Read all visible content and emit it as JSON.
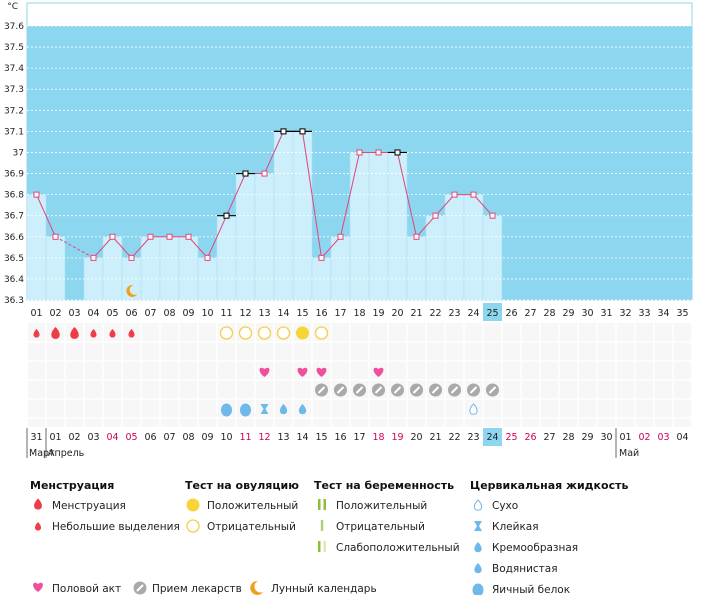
{
  "chart_data": {
    "type": "line",
    "unit": "°C",
    "ylim": [
      36.3,
      37.6
    ],
    "y_ticks": [
      "36.3",
      "36.4",
      "36.5",
      "36.6",
      "36.7",
      "36.8",
      "36.9",
      "37",
      "37.1",
      "37.2",
      "37.3",
      "37.4",
      "37.5",
      "37.6"
    ],
    "cycle_days": [
      "01",
      "02",
      "03",
      "04",
      "05",
      "06",
      "07",
      "08",
      "09",
      "10",
      "11",
      "12",
      "13",
      "14",
      "15",
      "16",
      "17",
      "18",
      "19",
      "20",
      "21",
      "22",
      "23",
      "24",
      "25",
      "26",
      "27",
      "28",
      "29",
      "30",
      "31",
      "32",
      "33",
      "34",
      "35"
    ],
    "today_cycle_day": "25",
    "temperatures": [
      36.8,
      36.6,
      null,
      36.5,
      36.6,
      36.5,
      36.6,
      36.6,
      36.6,
      36.5,
      36.7,
      36.9,
      36.9,
      37.1,
      37.1,
      36.5,
      36.6,
      37.0,
      37.0,
      37.0,
      36.6,
      36.7,
      36.8,
      36.8,
      36.7
    ],
    "marked_days": [
      "11",
      "12",
      "14",
      "15",
      "20"
    ],
    "dashed_from_to": [
      "02",
      "04"
    ],
    "moon_day": "06",
    "calendar_dates": [
      "31",
      "01",
      "02",
      "03",
      "04",
      "05",
      "06",
      "07",
      "08",
      "09",
      "10",
      "11",
      "12",
      "13",
      "14",
      "15",
      "16",
      "17",
      "18",
      "19",
      "20",
      "21",
      "22",
      "23",
      "24",
      "25",
      "26",
      "27",
      "28",
      "29",
      "30",
      "01",
      "02",
      "03",
      "04"
    ],
    "weekend_dates": [
      4,
      5,
      11,
      12,
      18,
      19,
      25,
      26,
      32,
      33
    ],
    "today_calendar_date": "24",
    "month_labels": [
      {
        "day": "31",
        "label": "Март"
      },
      {
        "day": "01",
        "label": "Апрель"
      },
      {
        "day": "01",
        "label": "Май"
      }
    ],
    "rows": {
      "menstruation": [
        {
          "day": "01",
          "type": "light"
        },
        {
          "day": "02",
          "type": "heavy"
        },
        {
          "day": "03",
          "type": "heavy"
        },
        {
          "day": "04",
          "type": "light"
        },
        {
          "day": "05",
          "type": "light"
        },
        {
          "day": "06",
          "type": "light"
        }
      ],
      "ovulation_test": [
        {
          "day": "11",
          "type": "negative"
        },
        {
          "day": "12",
          "type": "negative"
        },
        {
          "day": "13",
          "type": "negative"
        },
        {
          "day": "14",
          "type": "negative"
        },
        {
          "day": "15",
          "type": "positive"
        },
        {
          "day": "16",
          "type": "negative"
        }
      ],
      "intercourse": [
        "13",
        "15",
        "16",
        "19"
      ],
      "medication": [
        "16",
        "17",
        "18",
        "19",
        "20",
        "21",
        "22",
        "23",
        "24",
        "25"
      ],
      "cervical_fluid": [
        {
          "day": "11",
          "type": "egg-white"
        },
        {
          "day": "12",
          "type": "egg-white"
        },
        {
          "day": "13",
          "type": "sticky"
        },
        {
          "day": "14",
          "type": "watery"
        },
        {
          "day": "15",
          "type": "watery"
        },
        {
          "day": "24",
          "type": "dry"
        }
      ]
    }
  },
  "legend": {
    "menstruation": {
      "title": "Менструация",
      "items": [
        "Менструация",
        "Небольшие выделения"
      ]
    },
    "ovulation": {
      "title": "Тест на овуляцию",
      "items": [
        "Положительный",
        "Отрицательный"
      ]
    },
    "pregnancy": {
      "title": "Тест на беременность",
      "items": [
        "Положительный",
        "Отрицательный",
        "Слабоположительный"
      ]
    },
    "cervical": {
      "title": "Цервикальная жидкость",
      "items": [
        "Сухо",
        "Клейкая",
        "Кремообразная",
        "Водянистая",
        "Яичный белок"
      ]
    },
    "bottom": [
      "Половой акт",
      "Прием лекарств",
      "Лунный календарь"
    ]
  },
  "colors": {
    "sky": "#8dd6f0",
    "bar": "#cdeefb",
    "line": "#e0457b",
    "menstruation": "#ef3d47",
    "ovulation_pos": "#f7d437",
    "ovulation_neg": "#f3cf4a",
    "heart": "#ef4f9c",
    "pill": "#a9a9a9",
    "drop": "#6fb8ea",
    "moon": "#f0a020",
    "today": "#8dd6f0",
    "preg_pos": "#8bbf3a",
    "preg_neg": "#b1d27a",
    "preg_weak": "#d9e8b5"
  }
}
